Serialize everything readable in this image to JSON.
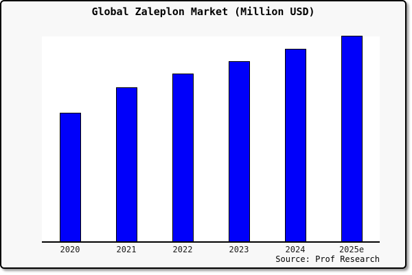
{
  "chart_data": {
    "type": "bar",
    "title": "Global Zaleplon Market (Million USD)",
    "categories": [
      "2020",
      "2021",
      "2022",
      "2023",
      "2024",
      "2025e"
    ],
    "values": [
      62.5,
      75,
      81.5,
      87.5,
      93.5,
      100
    ],
    "values_note": "Relative bar heights as % of tallest (2025e) bar; chart shows no numeric y-axis or data labels",
    "xlabel": "",
    "ylabel": "",
    "ylim": [
      0,
      100
    ],
    "grid": false,
    "legend": false,
    "bar_color": "#0000fa",
    "bar_border_color": "#000000",
    "plot_background": "#ffffff",
    "page_background": "#f8f8f8",
    "source": "Source: Prof Research"
  }
}
